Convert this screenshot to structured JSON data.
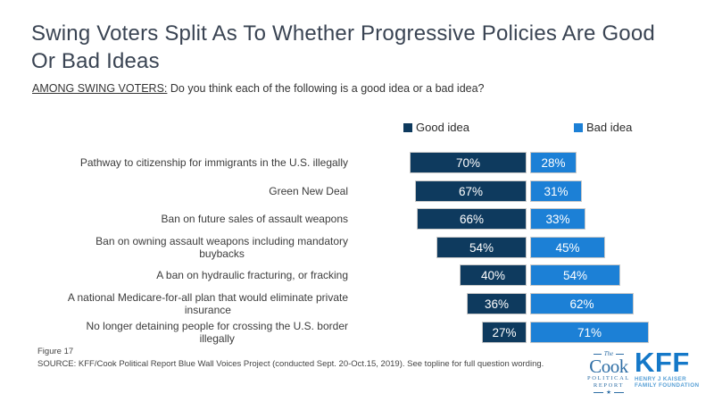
{
  "header": {
    "title_lines": [
      "Swing Voters Split As To Whether Progressive Policies Are Good",
      "Or Bad Ideas"
    ],
    "subtitle_prefix": "AMONG SWING VOTERS:",
    "subtitle_rest": " Do you think each of the following is a good idea or a bad idea?"
  },
  "chart_data": {
    "type": "bar",
    "orientation": "horizontal",
    "variant": "diverging-stacked",
    "title": "Swing Voters Split As To Whether Progressive Policies Are Good Or Bad Ideas",
    "question": "AMONG SWING VOTERS: Do you think each of the following is a good idea or a bad idea?",
    "categories": [
      "Pathway to citizenship for immigrants in the U.S. illegally",
      "Green New Deal",
      "Ban on future sales of assault weapons",
      "Ban on owning assault weapons including mandatory buybacks",
      "A ban on hydraulic fracturing, or fracking",
      "A national Medicare-for-all plan that would eliminate private insurance",
      "No longer detaining people for crossing the U.S. border illegally"
    ],
    "categories_display": [
      "Pathway to citizenship for immigrants in the U.S. illegally",
      "Green New Deal",
      "Ban on future sales of assault weapons",
      "Ban on owning assault weapons including mandatory\nbuybacks",
      "A ban on hydraulic fracturing, or fracking",
      "A national Medicare-for-all plan that would eliminate private\ninsurance",
      "No longer detaining people for crossing the U.S. border\nillegally",
      ""
    ],
    "series": [
      {
        "name": "Good idea",
        "color": "#0E3A5E",
        "values": [
          70,
          67,
          66,
          54,
          40,
          36,
          27
        ]
      },
      {
        "name": "Bad idea",
        "color": "#1C80D6",
        "values": [
          28,
          31,
          33,
          45,
          54,
          62,
          71
        ]
      }
    ],
    "value_unit": "%",
    "data_labels": "inside-white",
    "legend_position": "top",
    "grid": "off"
  },
  "colors": {
    "good_bar": "#0E3A5E",
    "bad_bar": "#1C80D6",
    "bar_border": "#C9C9C9",
    "title_text": "#3A4453",
    "body_text": "#3C3C3C",
    "cook_blue": "#2E6EA5",
    "kff_blue": "#1478C8",
    "kff_light_blue": "#58A0D6"
  },
  "footer": {
    "figure": "Figure 17",
    "source": "SOURCE: KFF/Cook Political Report Blue Wall Voices Project (conducted Sept. 20-Oct.15, 2019). See topline for full question wording."
  },
  "logos": {
    "cook": {
      "the": "The",
      "name": "Cook",
      "line1": "POLITICAL",
      "line2": "REPORT",
      "star": "★"
    },
    "kff": {
      "name": "KFF",
      "sub1": "HENRY J KAISER",
      "sub2": "FAMILY FOUNDATION"
    }
  }
}
